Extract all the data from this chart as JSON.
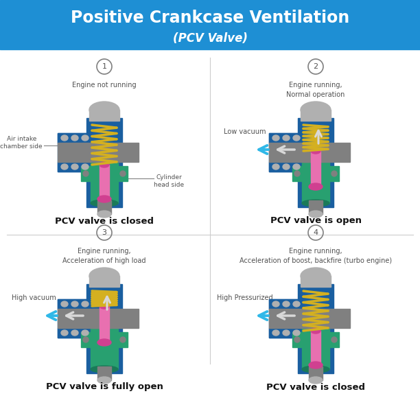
{
  "title_line1": "Positive Crankcase Ventilation",
  "title_line2": "(PCV Valve)",
  "title_bg": "#1e8fd4",
  "title_fg": "#ffffff",
  "bg": "#ffffff",
  "blue1": "#1a5fa0",
  "blue2": "#2878c0",
  "blue3": "#4898d8",
  "gray1": "#505050",
  "gray2": "#808080",
  "gray3": "#b0b0b0",
  "gray4": "#d0d0d0",
  "green1": "#1a7a58",
  "green2": "#28a070",
  "pink1": "#d04090",
  "pink2": "#e870b0",
  "yellow1": "#d4b020",
  "cyan1": "#30b8e8",
  "white1": "#d8d8d8",
  "divider": "#cccccc",
  "caption_color": "#111111",
  "panels": [
    {
      "num": "1",
      "sub": "Engine not running",
      "cap": "PCV valve is closed",
      "left_arr": false,
      "up_arr": false,
      "plunger": 0,
      "lbl1": "Air intake\nchamber side",
      "lbl1_side": "left",
      "lbl2": "Cylinder\nhead side",
      "lbl2_side": "right"
    },
    {
      "num": "2",
      "sub": "Engine running,\nNormal operation",
      "cap": "PCV valve is open",
      "left_arr": true,
      "up_arr": true,
      "plunger": 1,
      "lbl1": "Low vacuum",
      "lbl1_side": "left",
      "lbl2": "",
      "lbl2_side": ""
    },
    {
      "num": "3",
      "sub": "Engine running,\nAcceleration of high load",
      "cap": "PCV valve is fully open",
      "left_arr": true,
      "up_arr": true,
      "plunger": 2,
      "lbl1": "High vacuum",
      "lbl1_side": "left",
      "lbl2": "",
      "lbl2_side": ""
    },
    {
      "num": "4",
      "sub": "Engine running,\nAcceleration of boost, backfire (turbo engine)",
      "cap": "PCV valve is closed",
      "left_arr": true,
      "up_arr": false,
      "plunger": 0,
      "lbl1": "High Pressurized",
      "lbl1_side": "left",
      "lbl2": "",
      "lbl2_side": ""
    }
  ]
}
